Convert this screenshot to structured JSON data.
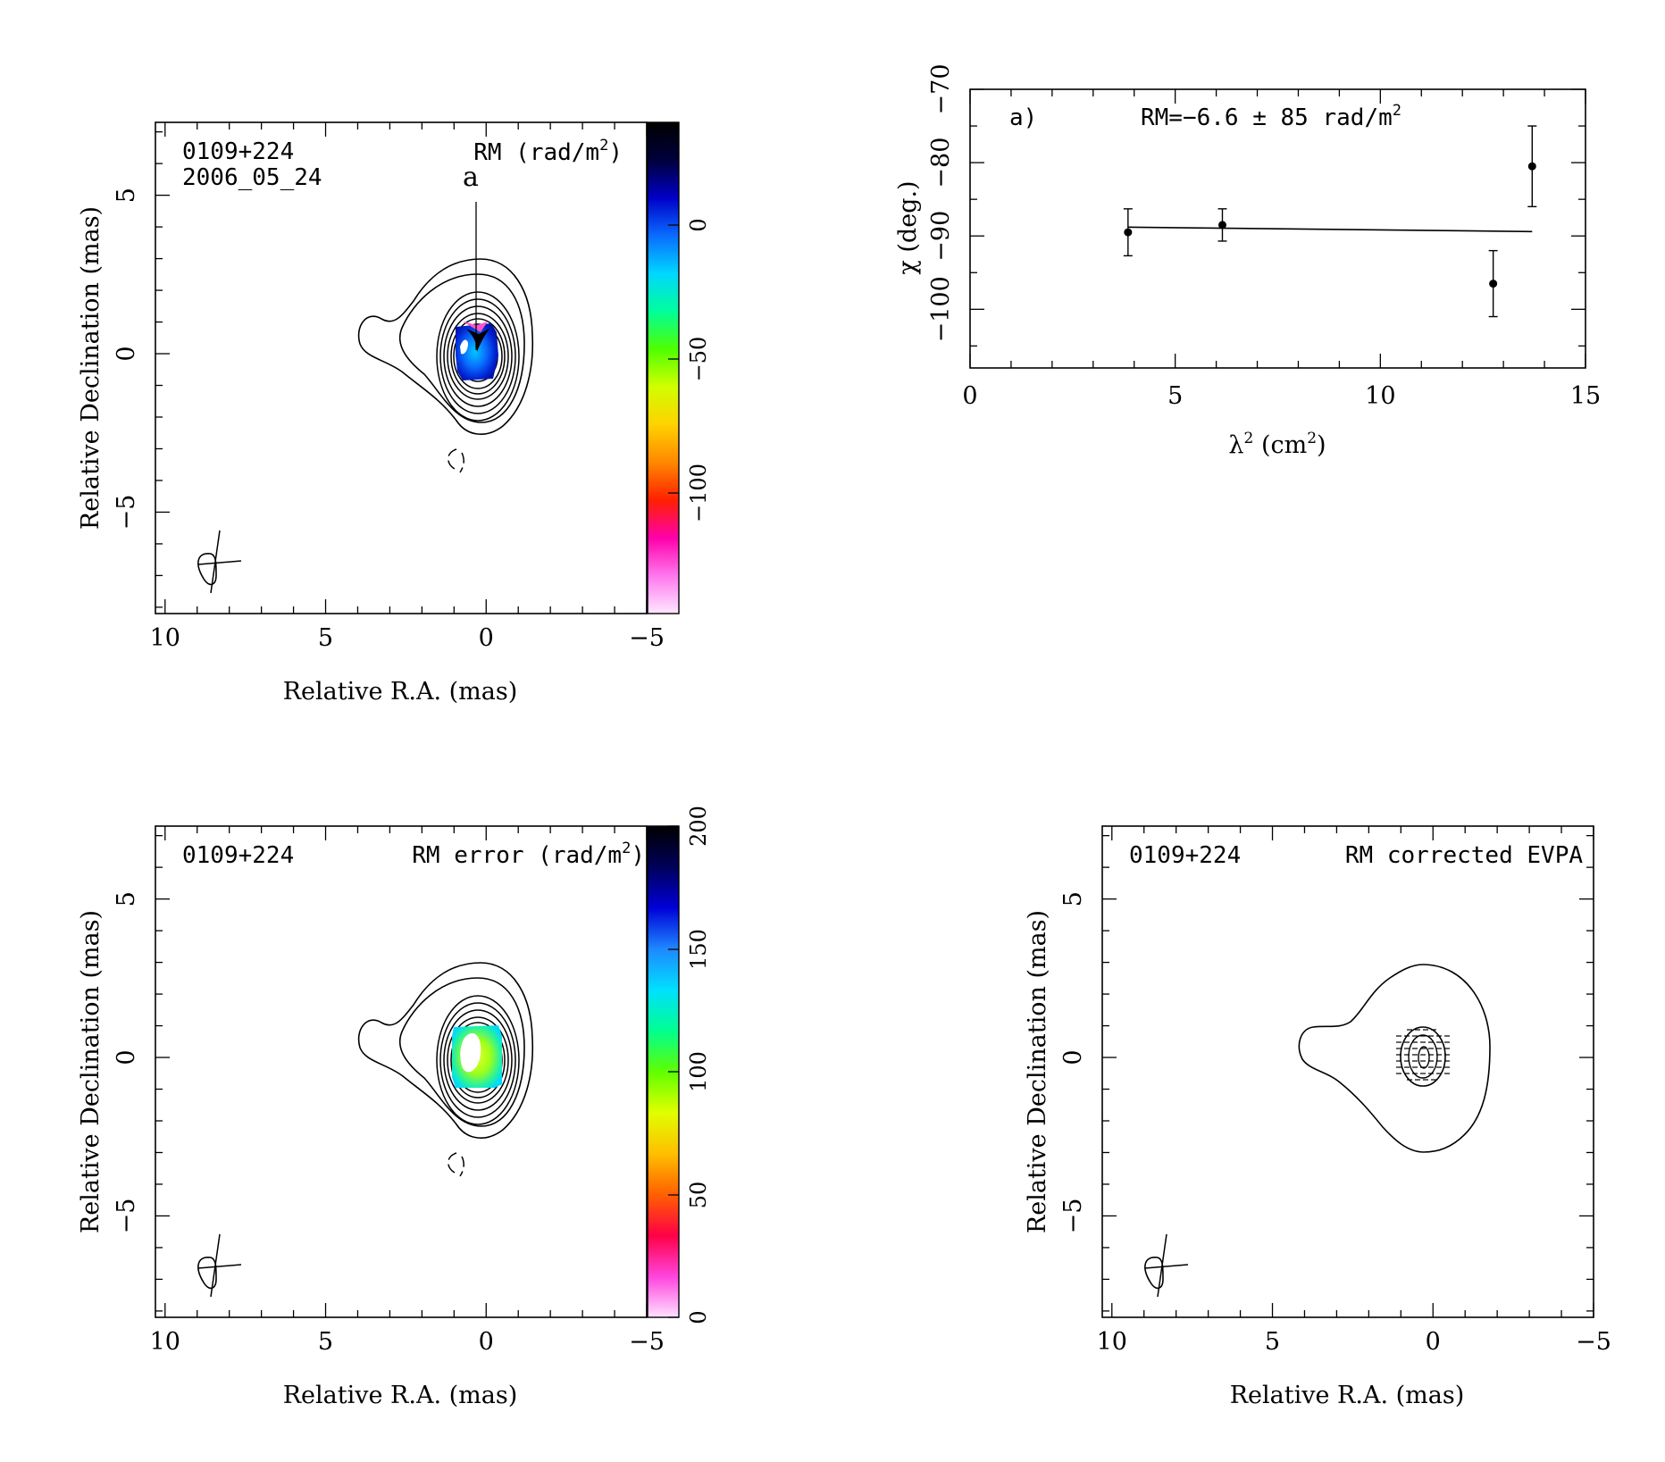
{
  "panels": {
    "rm_map": {
      "source": "0109+224",
      "date": "2006_05_24",
      "title_prefix": "RM (rad/m",
      "title_sup": "2",
      "title_suffix": ")",
      "marker_label": "a",
      "xlabel": "Relative R.A. (mas)",
      "ylabel": "Relative Declination (mas)",
      "colorbar_ticks": [
        "0",
        "−50",
        "−100"
      ]
    },
    "rm_error_map": {
      "source": "0109+224",
      "title_prefix": "RM error (rad/m",
      "title_sup": "2",
      "title_suffix": ")",
      "xlabel": "Relative R.A. (mas)",
      "ylabel": "Relative Declination (mas)",
      "colorbar_ticks": [
        "0",
        "50",
        "100",
        "150",
        "200"
      ]
    },
    "evpa_map": {
      "source": "0109+224",
      "title": "RM corrected EVPA",
      "xlabel": "Relative R.A. (mas)",
      "ylabel": "Relative Declination (mas)"
    },
    "fit_plot": {
      "panel_tag": "a)",
      "fit_prefix": "RM=−6.6 ± 85 rad/m",
      "fit_sup": "2",
      "xlabel_prefix": "λ",
      "xlabel_sup": "2",
      "xlabel_suffix": " (cm",
      "xlabel_sup2": "2",
      "xlabel_end": ")",
      "ylabel": "χ (deg.)"
    }
  },
  "map_axes": {
    "x_ticks": [
      "10",
      "5",
      "0",
      "−5"
    ],
    "y_ticks": [
      "5",
      "0",
      "−5"
    ],
    "xlim": [
      10.3,
      -5
    ],
    "ylim": [
      -8.2,
      7.3
    ]
  },
  "colors": {
    "rm_scale": [
      "#000000",
      "#00003c",
      "#0000c8",
      "#0a6cff",
      "#00d7ff",
      "#00ff9a",
      "#50ff00",
      "#d0ff00",
      "#ffd200",
      "#ff8800",
      "#ff2000",
      "#ff00aa",
      "#ff77ee",
      "#ffe8ff"
    ],
    "err_scale": [
      "#000000",
      "#00005a",
      "#0000d8",
      "#1e88ff",
      "#00e0ff",
      "#00ff90",
      "#60ff00",
      "#e0ff00",
      "#ffbf00",
      "#ff6000",
      "#ff0044",
      "#ff44dd",
      "#ffe0ff"
    ]
  },
  "chart_data": [
    {
      "type": "scatter",
      "title": "RM=−6.6 ± 85 rad/m²",
      "xlabel": "λ² (cm²)",
      "ylabel": "χ (deg.)",
      "xlim": [
        0,
        15
      ],
      "ylim": [
        -108,
        -70
      ],
      "x_ticks": [
        0,
        5,
        10,
        15
      ],
      "y_ticks": [
        -70,
        -80,
        -90,
        -100
      ],
      "points": [
        {
          "x": 3.85,
          "y": -89.5,
          "err": 3.2
        },
        {
          "x": 6.15,
          "y": -88.5,
          "err": 2.2
        },
        {
          "x": 12.75,
          "y": -96.5,
          "err": 4.5
        },
        {
          "x": 13.7,
          "y": -80.5,
          "err": 5.5
        }
      ],
      "fit_line": {
        "x": [
          3.85,
          13.7
        ],
        "y": [
          -88.8,
          -89.4
        ]
      }
    },
    {
      "type": "heatmap",
      "title": "RM (rad/m²)",
      "xlabel": "Relative R.A. (mas)",
      "ylabel": "Relative Declination (mas)",
      "xlim": [
        10.3,
        -5
      ],
      "ylim": [
        -8.2,
        7.3
      ],
      "colorbar_range": [
        -140,
        40
      ],
      "colorbar_ticks": [
        0,
        -50,
        -100
      ]
    },
    {
      "type": "heatmap",
      "title": "RM error (rad/m²)",
      "xlabel": "Relative R.A. (mas)",
      "ylabel": "Relative Declination (mas)",
      "xlim": [
        10.3,
        -5
      ],
      "ylim": [
        -8.2,
        7.3
      ],
      "colorbar_range": [
        0,
        200
      ],
      "colorbar_ticks": [
        0,
        50,
        100,
        150,
        200
      ]
    }
  ]
}
